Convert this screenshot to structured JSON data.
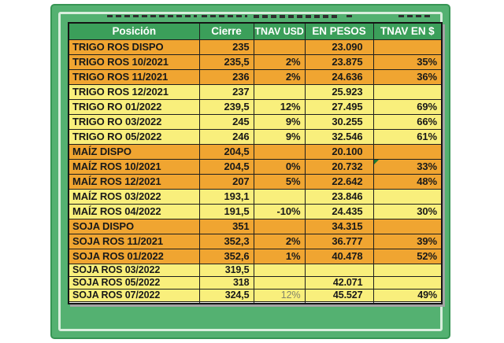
{
  "frame": {
    "color": "#54b171",
    "border_color": "#379554",
    "inner_line_color": "#d9eedd"
  },
  "table": {
    "header": {
      "bg": "#3b9f5a",
      "text_color": "#ffffff",
      "columns": [
        "Posición",
        "Cierre",
        "TNAV USD",
        "EN PESOS",
        "TNAV EN $"
      ]
    },
    "row_colors": {
      "orange": "#f0a531",
      "yellow": "#f9ef7c"
    },
    "rows": [
      {
        "posicion": "TRIGO ROS DISPO",
        "cierre": "235",
        "tnav_usd": "",
        "en_pesos": "23.090",
        "tnav_en_s": "",
        "tone": "orange"
      },
      {
        "posicion": "TRIGO ROS 10/2021",
        "cierre": "235,5",
        "tnav_usd": "2%",
        "en_pesos": "23.875",
        "tnav_en_s": "35%",
        "tone": "orange"
      },
      {
        "posicion": "TRIGO ROS 11/2021",
        "cierre": "236",
        "tnav_usd": "2%",
        "en_pesos": "24.636",
        "tnav_en_s": "36%",
        "tone": "orange"
      },
      {
        "posicion": "TRIGO ROS 12/2021",
        "cierre": "237",
        "tnav_usd": "",
        "en_pesos": "25.923",
        "tnav_en_s": "",
        "tone": "yellow"
      },
      {
        "posicion": "TRIGO RO 01/2022",
        "cierre": "239,5",
        "tnav_usd": "12%",
        "en_pesos": "27.495",
        "tnav_en_s": "69%",
        "tone": "yellow"
      },
      {
        "posicion": "TRIGO RO 03/2022",
        "cierre": "245",
        "tnav_usd": "9%",
        "en_pesos": "30.255",
        "tnav_en_s": "66%",
        "tone": "yellow"
      },
      {
        "posicion": "TRIGO RO 05/2022",
        "cierre": "246",
        "tnav_usd": "9%",
        "en_pesos": "32.546",
        "tnav_en_s": "61%",
        "tone": "yellow"
      },
      {
        "posicion": "MAÍZ DISPO",
        "cierre": "204,5",
        "tnav_usd": "",
        "en_pesos": "20.100",
        "tnav_en_s": "",
        "tone": "orange"
      },
      {
        "posicion": "MAÍZ ROS 10/2021",
        "cierre": "204,5",
        "tnav_usd": "0%",
        "en_pesos": "20.732",
        "tnav_en_s": "33%",
        "tone": "orange",
        "error_triangle": true
      },
      {
        "posicion": "MAÍZ ROS 12/2021",
        "cierre": "207",
        "tnav_usd": "5%",
        "en_pesos": "22.642",
        "tnav_en_s": "48%",
        "tone": "orange"
      },
      {
        "posicion": "MAÍZ ROS 03/2022",
        "cierre": "193,1",
        "tnav_usd": "",
        "en_pesos": "23.846",
        "tnav_en_s": "",
        "tone": "yellow"
      },
      {
        "posicion": "MAÍZ ROS 04/2022",
        "cierre": "191,5",
        "tnav_usd": "-10%",
        "en_pesos": "24.435",
        "tnav_en_s": "30%",
        "tone": "yellow"
      },
      {
        "posicion": "SOJA DISPO",
        "cierre": "351",
        "tnav_usd": "",
        "en_pesos": "34.315",
        "tnav_en_s": "",
        "tone": "orange"
      },
      {
        "posicion": "SOJA ROS 11/2021",
        "cierre": "352,3",
        "tnav_usd": "2%",
        "en_pesos": "36.777",
        "tnav_en_s": "39%",
        "tone": "orange"
      },
      {
        "posicion": "SOJA ROS 01/2022",
        "cierre": "352,6",
        "tnav_usd": "1%",
        "en_pesos": "40.478",
        "tnav_en_s": "52%",
        "tone": "orange"
      },
      {
        "posicion": "SOJA ROS 03/2022",
        "cierre": "319,5",
        "tnav_usd": "",
        "en_pesos": "",
        "tnav_en_s": "",
        "tone": "yellow",
        "short": true
      },
      {
        "posicion": "SOJA ROS 05/2022",
        "cierre": "318",
        "tnav_usd": "",
        "en_pesos": "42.071",
        "tnav_en_s": "",
        "tone": "yellow",
        "short": true
      },
      {
        "posicion": "SOJA ROS 07/2022",
        "cierre": "324,5",
        "tnav_usd": "12%",
        "en_pesos": "45.527",
        "tnav_en_s": "49%",
        "tone": "yellow",
        "short": true,
        "muted_usd": true
      }
    ]
  }
}
